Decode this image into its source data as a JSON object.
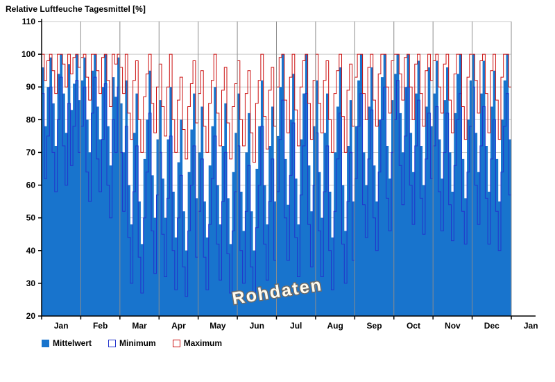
{
  "title": "Relative Luftfeuche Tagesmittel [%]",
  "watermark": "Rohdaten",
  "legend": {
    "items": [
      {
        "label": "Mittelwert",
        "swatch": "filled-blue-square"
      },
      {
        "label": "Minimum",
        "swatch": "white-square-blue-border"
      },
      {
        "label": "Maximum",
        "swatch": "white-square-red-border"
      }
    ]
  },
  "colors": {
    "mean_fill": "#1874CD",
    "min_line": "#2233CC",
    "max_line": "#CC1111",
    "grid": "#C9C9C9",
    "month_grid": "#8C8C8C",
    "axis": "#000000",
    "watermark_fill": "#FFFBEE",
    "watermark_stroke": "#6B6B6B"
  },
  "chart_data": {
    "type": "area",
    "title": "Relative Luftfeuche Tagesmittel [%]",
    "ylabel": "",
    "xlabel": "",
    "ylim": [
      20,
      110
    ],
    "yticks": [
      20,
      30,
      40,
      50,
      60,
      70,
      80,
      90,
      100,
      110
    ],
    "grid": "on",
    "legend_position": "bottom-left",
    "x_description": "one year of daily relative-humidity raw data (Rohdaten), sampled here as 180 steps (15 per month)",
    "month_labels": [
      "Jan",
      "Feb",
      "Mar",
      "Apr",
      "May",
      "Jun",
      "Jul",
      "Aug",
      "Sep",
      "Oct",
      "Nov",
      "Dec",
      "Jan"
    ],
    "points_per_month": 15,
    "series": [
      {
        "name": "Mittelwert",
        "style": "filled-step-area",
        "values": [
          96,
          78,
          90,
          99,
          85,
          72,
          94,
          100,
          88,
          76,
          97,
          83,
          91,
          100,
          86,
          92,
          99,
          80,
          70,
          95,
          100,
          84,
          74,
          90,
          100,
          78,
          66,
          93,
          87,
          99,
          85,
          70,
          92,
          60,
          48,
          76,
          88,
          55,
          42,
          68,
          80,
          95,
          63,
          50,
          74,
          86,
          62,
          50,
          74,
          90,
          58,
          44,
          67,
          80,
          52,
          40,
          64,
          77,
          88,
          56,
          70,
          84,
          55,
          44,
          66,
          78,
          90,
          60,
          48,
          72,
          85,
          56,
          42,
          64,
          76,
          88,
          58,
          46,
          70,
          82,
          52,
          40,
          65,
          78,
          92,
          60,
          48,
          72,
          84,
          55,
          75,
          90,
          100,
          68,
          54,
          80,
          94,
          62,
          48,
          74,
          88,
          100,
          66,
          52,
          78,
          92,
          64,
          50,
          76,
          88,
          58,
          44,
          70,
          84,
          96,
          60,
          46,
          72,
          86,
          55,
          78,
          92,
          100,
          70,
          60,
          84,
          96,
          66,
          55,
          80,
          93,
          100,
          72,
          62,
          86,
          94,
          100,
          82,
          70,
          90,
          100,
          76,
          64,
          88,
          98,
          72,
          60,
          84,
          96,
          78,
          88,
          98,
          74,
          62,
          86,
          96,
          70,
          58,
          82,
          94,
          100,
          68,
          56,
          80,
          92,
          100,
          76,
          64,
          88,
          98,
          72,
          58,
          84,
          95,
          68,
          55,
          80,
          92,
          100,
          74
        ]
      },
      {
        "name": "Minimum",
        "style": "step-line",
        "values": [
          88,
          62,
          75,
          90,
          70,
          58,
          80,
          93,
          72,
          60,
          85,
          66,
          78,
          92,
          70,
          78,
          90,
          64,
          55,
          82,
          93,
          68,
          58,
          74,
          91,
          60,
          50,
          80,
          70,
          90,
          70,
          52,
          78,
          44,
          30,
          58,
          72,
          38,
          27,
          50,
          64,
          82,
          46,
          33,
          57,
          70,
          45,
          32,
          56,
          75,
          40,
          28,
          50,
          63,
          35,
          26,
          46,
          60,
          72,
          38,
          52,
          68,
          38,
          28,
          48,
          62,
          75,
          42,
          31,
          55,
          70,
          39,
          27,
          46,
          58,
          72,
          40,
          30,
          52,
          66,
          35,
          26,
          47,
          60,
          78,
          42,
          31,
          55,
          68,
          37,
          58,
          74,
          86,
          50,
          37,
          63,
          79,
          44,
          32,
          57,
          72,
          88,
          48,
          35,
          60,
          76,
          46,
          32,
          58,
          72,
          40,
          28,
          52,
          68,
          82,
          42,
          30,
          55,
          70,
          37,
          62,
          78,
          88,
          54,
          44,
          68,
          83,
          50,
          40,
          64,
          80,
          90,
          56,
          46,
          70,
          80,
          92,
          66,
          54,
          75,
          90,
          60,
          48,
          72,
          86,
          56,
          45,
          68,
          82,
          62,
          72,
          84,
          58,
          46,
          70,
          82,
          54,
          43,
          66,
          80,
          88,
          52,
          42,
          64,
          78,
          90,
          60,
          48,
          72,
          84,
          56,
          42,
          68,
          80,
          52,
          40,
          64,
          78,
          88,
          57
        ]
      },
      {
        "name": "Maximum",
        "style": "step-line",
        "values": [
          100,
          92,
          98,
          100,
          95,
          88,
          100,
          100,
          97,
          90,
          100,
          94,
          99,
          100,
          96,
          99,
          100,
          93,
          86,
          100,
          100,
          95,
          88,
          99,
          100,
          92,
          84,
          100,
          97,
          100,
          96,
          88,
          100,
          82,
          74,
          92,
          98,
          80,
          70,
          87,
          94,
          100,
          85,
          76,
          90,
          97,
          84,
          75,
          90,
          100,
          80,
          70,
          86,
          93,
          77,
          68,
          84,
          91,
          98,
          79,
          88,
          95,
          78,
          70,
          85,
          92,
          100,
          82,
          72,
          89,
          96,
          79,
          68,
          84,
          91,
          98,
          80,
          72,
          88,
          95,
          76,
          67,
          85,
          92,
          100,
          81,
          71,
          89,
          96,
          78,
          90,
          99,
          100,
          86,
          76,
          93,
          100,
          83,
          72,
          90,
          98,
          100,
          85,
          74,
          92,
          100,
          85,
          76,
          92,
          98,
          80,
          70,
          88,
          95,
          100,
          81,
          70,
          89,
          97,
          78,
          93,
          100,
          100,
          88,
          80,
          96,
          100,
          86,
          78,
          94,
          100,
          100,
          90,
          82,
          98,
          100,
          100,
          94,
          86,
          99,
          100,
          90,
          80,
          97,
          100,
          88,
          78,
          95,
          100,
          92,
          98,
          100,
          90,
          82,
          97,
          100,
          86,
          76,
          94,
          100,
          100,
          84,
          74,
          93,
          100,
          100,
          92,
          82,
          98,
          100,
          88,
          76,
          95,
          100,
          86,
          74,
          93,
          100,
          100,
          90
        ]
      }
    ]
  }
}
